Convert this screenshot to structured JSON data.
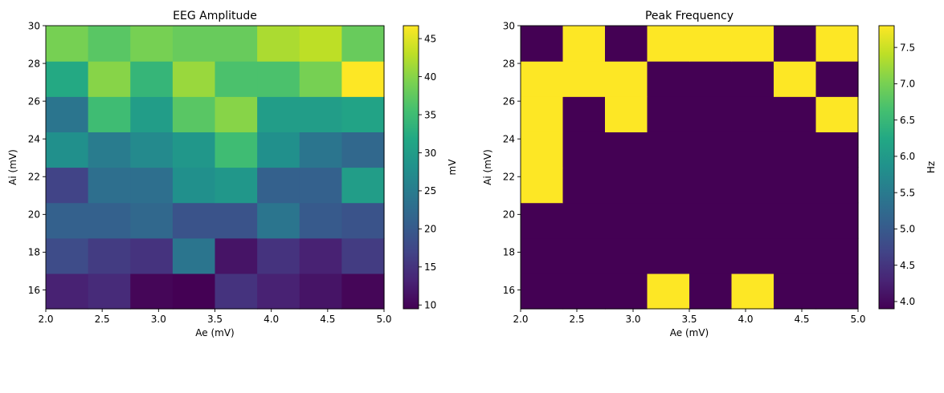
{
  "chart_data": [
    {
      "type": "heatmap",
      "title": "EEG Amplitude",
      "xlabel": "Ae (mV)",
      "ylabel": "Ai (mV)",
      "colorbar_label": "mV",
      "colormap": "viridis",
      "xlim": [
        2.0,
        5.0
      ],
      "ylim": [
        15.0,
        30.0
      ],
      "xticks": [
        "2.0",
        "2.5",
        "3.0",
        "3.5",
        "4.0",
        "4.5",
        "5.0"
      ],
      "yticks": [
        "16",
        "18",
        "20",
        "22",
        "24",
        "26",
        "28"
      ],
      "yticks_top": "30",
      "clim": [
        9.5,
        46.7
      ],
      "colorbar_ticks": [
        "10",
        "15",
        "20",
        "25",
        "30",
        "35",
        "40",
        "45"
      ],
      "rows_bottom_to_top": [
        [
          13,
          14,
          10,
          9.5,
          15,
          13,
          11.5,
          10
        ],
        [
          18,
          16,
          15,
          24,
          11.5,
          15,
          13,
          16
        ],
        [
          21,
          21,
          22,
          19,
          19,
          24,
          20,
          19
        ],
        [
          17,
          23,
          23,
          28,
          29,
          21,
          21,
          30
        ],
        [
          28,
          25,
          27,
          29,
          35,
          28,
          24,
          22
        ],
        [
          24,
          35,
          30,
          37,
          40,
          30,
          30,
          31
        ],
        [
          32,
          40,
          34,
          41,
          36,
          36,
          39,
          46.7
        ],
        [
          39,
          37,
          39,
          38,
          38,
          42,
          43,
          38
        ]
      ]
    },
    {
      "type": "heatmap",
      "title": "Peak Frequency",
      "xlabel": "Ae (mV)",
      "ylabel": "Ai (mV)",
      "colorbar_label": "Hz",
      "colormap": "viridis",
      "xlim": [
        2.0,
        5.0
      ],
      "ylim": [
        15.0,
        30.0
      ],
      "xticks": [
        "2.0",
        "2.5",
        "3.0",
        "3.5",
        "4.0",
        "4.5",
        "5.0"
      ],
      "yticks": [
        "16",
        "18",
        "20",
        "22",
        "24",
        "26",
        "28"
      ],
      "yticks_top": "30",
      "clim": [
        3.9,
        7.8
      ],
      "colorbar_ticks": [
        "4.0",
        "4.5",
        "5.0",
        "5.5",
        "6.0",
        "6.5",
        "7.0",
        "7.5"
      ],
      "rows_bottom_to_top": [
        [
          3.9,
          3.9,
          3.9,
          7.8,
          3.9,
          7.8,
          3.9,
          3.9
        ],
        [
          3.9,
          3.9,
          3.9,
          3.9,
          3.9,
          3.9,
          3.9,
          3.9
        ],
        [
          3.9,
          3.9,
          3.9,
          3.9,
          3.9,
          3.9,
          3.9,
          3.9
        ],
        [
          7.8,
          3.9,
          3.9,
          3.9,
          3.9,
          3.9,
          3.9,
          3.9
        ],
        [
          7.8,
          3.9,
          3.9,
          3.9,
          3.9,
          3.9,
          3.9,
          3.9
        ],
        [
          7.8,
          3.9,
          7.8,
          3.9,
          3.9,
          3.9,
          3.9,
          7.8
        ],
        [
          7.8,
          7.8,
          7.8,
          3.9,
          3.9,
          3.9,
          7.8,
          3.9
        ],
        [
          3.9,
          7.8,
          3.9,
          7.8,
          7.8,
          7.8,
          3.9,
          7.8
        ]
      ]
    }
  ]
}
